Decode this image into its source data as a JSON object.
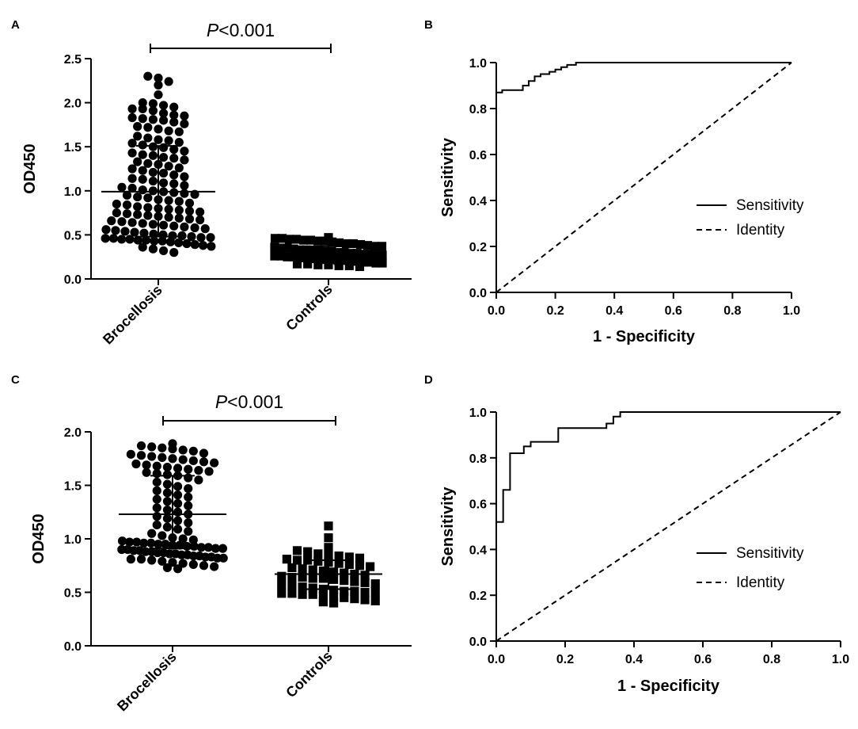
{
  "chart_data": [
    {
      "panel": "A",
      "type": "scatter",
      "title": "",
      "xlabel": "",
      "ylabel": "OD450",
      "ylim": [
        0,
        2.5
      ],
      "yticks": [
        0.0,
        0.5,
        1.0,
        1.5,
        2.0,
        2.5
      ],
      "ytick_labels": [
        "0.0",
        "0.5",
        "1.0",
        "1.5",
        "2.0",
        "2.5"
      ],
      "categories": [
        "Brocellosis",
        "Controls"
      ],
      "significance": {
        "prefix": "P",
        "text": "<0.001"
      },
      "groups": [
        {
          "name": "Brocellosis",
          "marker": "circle",
          "mean": 0.99,
          "sd_low": 0.48,
          "sd_high": 1.51,
          "points": [
            2.3,
            2.28,
            2.24,
            2.2,
            2.09,
            2.0,
            1.99,
            1.97,
            1.95,
            1.93,
            1.93,
            1.91,
            1.88,
            1.86,
            1.85,
            1.83,
            1.82,
            1.81,
            1.8,
            1.78,
            1.76,
            1.73,
            1.72,
            1.7,
            1.68,
            1.67,
            1.62,
            1.6,
            1.58,
            1.57,
            1.55,
            1.54,
            1.52,
            1.5,
            1.49,
            1.47,
            1.45,
            1.43,
            1.41,
            1.4,
            1.38,
            1.37,
            1.35,
            1.33,
            1.31,
            1.3,
            1.28,
            1.26,
            1.25,
            1.23,
            1.21,
            1.2,
            1.18,
            1.16,
            1.14,
            1.13,
            1.11,
            1.09,
            1.08,
            1.06,
            1.04,
            1.03,
            1.01,
            1.0,
            0.99,
            0.98,
            0.97,
            0.96,
            0.95,
            0.93,
            0.92,
            0.9,
            0.89,
            0.88,
            0.86,
            0.85,
            0.84,
            0.82,
            0.81,
            0.8,
            0.79,
            0.78,
            0.77,
            0.76,
            0.75,
            0.74,
            0.73,
            0.72,
            0.71,
            0.7,
            0.69,
            0.68,
            0.67,
            0.66,
            0.65,
            0.64,
            0.63,
            0.62,
            0.61,
            0.6,
            0.59,
            0.58,
            0.57,
            0.56,
            0.55,
            0.54,
            0.53,
            0.52,
            0.51,
            0.5,
            0.49,
            0.49,
            0.48,
            0.47,
            0.47,
            0.46,
            0.46,
            0.45,
            0.45,
            0.44,
            0.44,
            0.43,
            0.43,
            0.42,
            0.41,
            0.4,
            0.39,
            0.38,
            0.37,
            0.36,
            0.34,
            0.32,
            0.3
          ]
        },
        {
          "name": "Controls",
          "marker": "square",
          "mean": 0.29,
          "sd_low": 0.21,
          "sd_high": 0.37,
          "points": [
            0.47,
            0.46,
            0.46,
            0.45,
            0.45,
            0.44,
            0.44,
            0.43,
            0.43,
            0.42,
            0.41,
            0.4,
            0.4,
            0.39,
            0.38,
            0.37,
            0.37,
            0.36,
            0.35,
            0.35,
            0.34,
            0.33,
            0.33,
            0.32,
            0.32,
            0.31,
            0.31,
            0.3,
            0.3,
            0.29,
            0.29,
            0.28,
            0.28,
            0.27,
            0.27,
            0.26,
            0.26,
            0.25,
            0.25,
            0.24,
            0.24,
            0.23,
            0.23,
            0.22,
            0.22,
            0.21,
            0.21,
            0.2,
            0.2,
            0.19,
            0.19,
            0.18,
            0.18,
            0.17,
            0.17,
            0.16,
            0.16,
            0.15,
            0.15,
            0.14
          ]
        }
      ]
    },
    {
      "panel": "B",
      "type": "line",
      "title": "",
      "xlabel": "1 - Specificity",
      "ylabel": "Sensitivity",
      "xlim": [
        0,
        1
      ],
      "ylim": [
        0,
        1
      ],
      "xticks": [
        0.0,
        0.2,
        0.4,
        0.6,
        0.8,
        1.0
      ],
      "yticks": [
        0.0,
        0.2,
        0.4,
        0.6,
        0.8,
        1.0
      ],
      "xtick_labels": [
        "0.0",
        "0.2",
        "0.4",
        "0.6",
        "0.8",
        "1.0"
      ],
      "ytick_labels": [
        "0.0",
        "0.2",
        "0.4",
        "0.6",
        "0.8",
        "1.0"
      ],
      "legend": [
        "Sensitivity",
        "Identity"
      ],
      "legend_position": "lower-right",
      "series": [
        {
          "name": "Sensitivity",
          "style": "solid",
          "x": [
            0.0,
            0.0,
            0.02,
            0.02,
            0.09,
            0.09,
            0.11,
            0.11,
            0.13,
            0.13,
            0.15,
            0.15,
            0.18,
            0.18,
            0.2,
            0.2,
            0.22,
            0.22,
            0.24,
            0.24,
            0.27,
            0.27,
            0.36,
            1.0
          ],
          "y": [
            0.0,
            0.87,
            0.87,
            0.88,
            0.88,
            0.9,
            0.9,
            0.92,
            0.92,
            0.94,
            0.94,
            0.95,
            0.95,
            0.96,
            0.96,
            0.97,
            0.97,
            0.98,
            0.98,
            0.99,
            0.99,
            1.0,
            1.0,
            1.0
          ]
        },
        {
          "name": "Identity",
          "style": "dashed",
          "x": [
            0,
            1
          ],
          "y": [
            0,
            1
          ]
        }
      ]
    },
    {
      "panel": "C",
      "type": "scatter",
      "title": "",
      "xlabel": "",
      "ylabel": "OD450",
      "ylim": [
        0,
        2.0
      ],
      "yticks": [
        0.0,
        0.5,
        1.0,
        1.5,
        2.0
      ],
      "ytick_labels": [
        "0.0",
        "0.5",
        "1.0",
        "1.5",
        "2.0"
      ],
      "categories": [
        "Brocellosis",
        "Controls"
      ],
      "significance": {
        "prefix": "P",
        "text": "<0.001"
      },
      "groups": [
        {
          "name": "Brocellosis",
          "marker": "circle",
          "mean": 1.23,
          "sd_low": 0.91,
          "sd_high": 1.59,
          "points": [
            1.89,
            1.87,
            1.86,
            1.85,
            1.84,
            1.83,
            1.82,
            1.8,
            1.79,
            1.78,
            1.77,
            1.76,
            1.75,
            1.74,
            1.73,
            1.72,
            1.71,
            1.7,
            1.69,
            1.68,
            1.67,
            1.66,
            1.65,
            1.64,
            1.63,
            1.62,
            1.61,
            1.6,
            1.59,
            1.57,
            1.55,
            1.53,
            1.51,
            1.49,
            1.47,
            1.45,
            1.43,
            1.41,
            1.39,
            1.37,
            1.35,
            1.33,
            1.31,
            1.29,
            1.27,
            1.25,
            1.23,
            1.21,
            1.19,
            1.17,
            1.15,
            1.13,
            1.11,
            1.09,
            1.07,
            1.05,
            1.03,
            1.01,
            1.0,
            0.99,
            0.98,
            0.97,
            0.97,
            0.96,
            0.96,
            0.95,
            0.95,
            0.94,
            0.94,
            0.93,
            0.93,
            0.92,
            0.92,
            0.91,
            0.91,
            0.9,
            0.9,
            0.89,
            0.89,
            0.88,
            0.88,
            0.87,
            0.87,
            0.86,
            0.86,
            0.85,
            0.85,
            0.84,
            0.84,
            0.83,
            0.83,
            0.82,
            0.82,
            0.81,
            0.81,
            0.8,
            0.79,
            0.78,
            0.77,
            0.76,
            0.75,
            0.74,
            0.73,
            0.72
          ]
        },
        {
          "name": "Controls",
          "marker": "square",
          "mean": 0.67,
          "sd_low": 0.53,
          "sd_high": 0.8,
          "points": [
            1.12,
            1.01,
            0.92,
            0.89,
            0.88,
            0.86,
            0.85,
            0.84,
            0.83,
            0.82,
            0.81,
            0.8,
            0.8,
            0.79,
            0.78,
            0.77,
            0.76,
            0.75,
            0.74,
            0.73,
            0.72,
            0.71,
            0.7,
            0.69,
            0.68,
            0.67,
            0.66,
            0.65,
            0.64,
            0.64,
            0.63,
            0.63,
            0.62,
            0.61,
            0.6,
            0.59,
            0.58,
            0.57,
            0.56,
            0.55,
            0.54,
            0.53,
            0.52,
            0.51,
            0.51,
            0.5,
            0.5,
            0.49,
            0.49,
            0.48,
            0.48,
            0.47,
            0.46,
            0.45,
            0.44,
            0.43,
            0.42,
            0.41,
            0.4
          ]
        }
      ]
    },
    {
      "panel": "D",
      "type": "line",
      "title": "",
      "xlabel": "1 - Specificity",
      "ylabel": "Sensitivity",
      "xlim": [
        0,
        1
      ],
      "ylim": [
        0,
        1
      ],
      "xticks": [
        0.0,
        0.2,
        0.4,
        0.6,
        0.8,
        1.0
      ],
      "yticks": [
        0.0,
        0.2,
        0.4,
        0.6,
        0.8,
        1.0
      ],
      "xtick_labels": [
        "0.0",
        "0.2",
        "0.4",
        "0.6",
        "0.8",
        "1.0"
      ],
      "ytick_labels": [
        "0.0",
        "0.2",
        "0.4",
        "0.6",
        "0.8",
        "1.0"
      ],
      "legend": [
        "Sensitivity",
        "Identity"
      ],
      "legend_position": "lower-right",
      "series": [
        {
          "name": "Sensitivity",
          "style": "solid",
          "x": [
            0.0,
            0.0,
            0.02,
            0.02,
            0.04,
            0.04,
            0.08,
            0.08,
            0.1,
            0.1,
            0.18,
            0.18,
            0.32,
            0.32,
            0.34,
            0.34,
            0.36,
            0.36,
            1.0
          ],
          "y": [
            0.0,
            0.52,
            0.52,
            0.66,
            0.66,
            0.82,
            0.82,
            0.85,
            0.85,
            0.87,
            0.87,
            0.93,
            0.93,
            0.95,
            0.95,
            0.98,
            0.98,
            1.0,
            1.0
          ]
        },
        {
          "name": "Identity",
          "style": "dashed",
          "x": [
            0,
            1
          ],
          "y": [
            0,
            1
          ]
        }
      ]
    }
  ]
}
